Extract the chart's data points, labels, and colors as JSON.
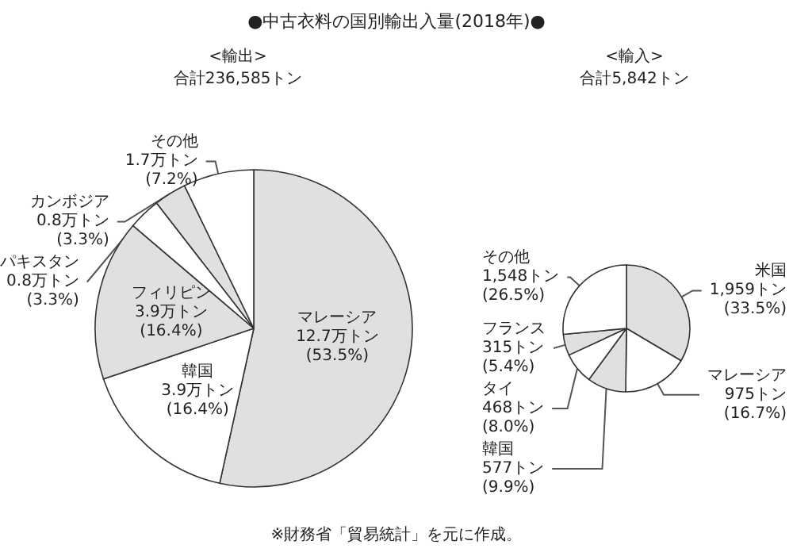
{
  "chart_data": [
    {
      "type": "pie",
      "title": "<輸出>",
      "subtitle": "合計236,585トン",
      "annotations": [
        "●中古衣料の国別輸出入量(2018年)●",
        "※財務省「貿易統計」を元に作成。"
      ],
      "categories": [
        "マレーシア",
        "韓国",
        "フィリピン",
        "パキスタン",
        "カンボジア",
        "その他"
      ],
      "values": [
        53.5,
        16.4,
        16.4,
        3.3,
        3.3,
        7.2
      ],
      "value_labels": [
        "12.7万トン\n(53.5%)",
        "3.9万トン\n(16.4%)",
        "3.9万トン\n(16.4%)",
        "0.8万トン\n(3.3%)",
        "0.8万トン\n(3.3%)",
        "1.7万トン\n(7.2%)"
      ],
      "colors": [
        "#e0e0e0",
        "#ffffff",
        "#e0e0e0",
        "#ffffff",
        "#e0e0e0",
        "#ffffff"
      ],
      "legend": false
    },
    {
      "type": "pie",
      "title": "<輸入>",
      "subtitle": "合計5,842トン",
      "categories": [
        "米国",
        "マレーシア",
        "韓国",
        "タイ",
        "フランス",
        "その他"
      ],
      "values": [
        33.5,
        16.7,
        9.9,
        8.0,
        5.4,
        26.5
      ],
      "value_labels": [
        "1,959トン\n(33.5%)",
        "975トン\n(16.7%)",
        "577トン\n(9.9%)",
        "468トン\n(8.0%)",
        "315トン\n(5.4%)",
        "1,548トン\n(26.5%)"
      ],
      "colors": [
        "#e0e0e0",
        "#ffffff",
        "#e0e0e0",
        "#ffffff",
        "#e0e0e0",
        "#ffffff"
      ],
      "legend": false
    }
  ]
}
